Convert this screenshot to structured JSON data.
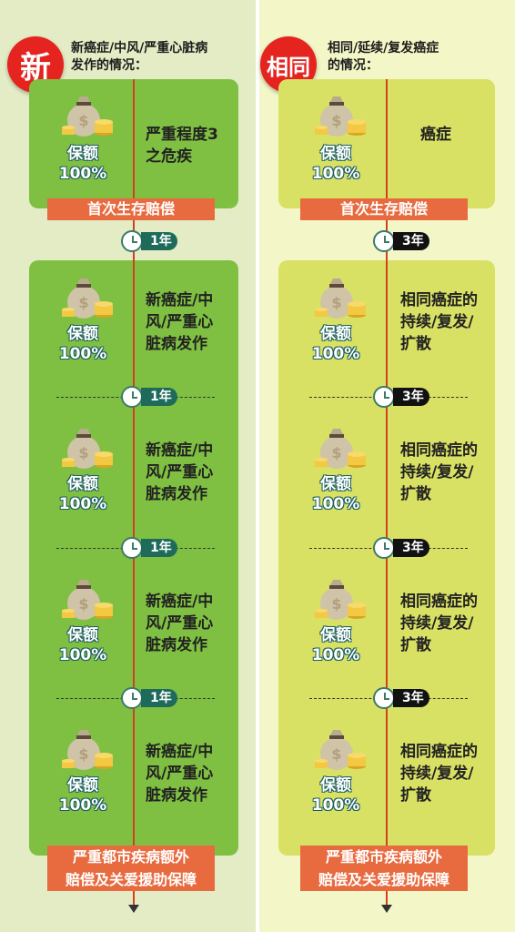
{
  "left": {
    "badge": "新",
    "intro_line1": "新癌症/中风/严重心脏病",
    "intro_line2": "发作的情况：",
    "first": {
      "amount_label": "保额",
      "amount_value": "100%",
      "desc_lines": [
        "严重程度3",
        "之危疾"
      ]
    },
    "first_banner": "首次生存赔偿",
    "interval": "1年",
    "repeat": {
      "amount_label": "保额",
      "amount_value": "100%",
      "desc_lines": [
        "新癌症/中",
        "风/严重心",
        "脏病发作"
      ]
    },
    "final_banner_lines": [
      "严重都市疾病额外",
      "赔偿及关爱援助保障"
    ]
  },
  "right": {
    "badge": "相同",
    "intro_line1": "相同/延续/复发癌症",
    "intro_line2": "的情况：",
    "first": {
      "amount_label": "保额",
      "amount_value": "100%",
      "desc_lines": [
        "癌症"
      ]
    },
    "first_banner": "首次生存赔偿",
    "interval": "3年",
    "repeat": {
      "amount_label": "保额",
      "amount_value": "100%",
      "desc_lines": [
        "相同癌症的",
        "持续/复发/",
        "扩散"
      ]
    },
    "final_banner_lines": [
      "严重都市疾病额外",
      "赔偿及关爱援助保障"
    ]
  },
  "icons": {
    "moneybag": "money-bag-icon",
    "clock": "clock-icon"
  },
  "colors": {
    "left_bg": "#e3ecc5",
    "right_bg": "#f3f6c6",
    "green_box": "#7fc042",
    "yellow_box": "#d9e164",
    "banner": "#e86a3f",
    "badge": "#e5231f"
  }
}
